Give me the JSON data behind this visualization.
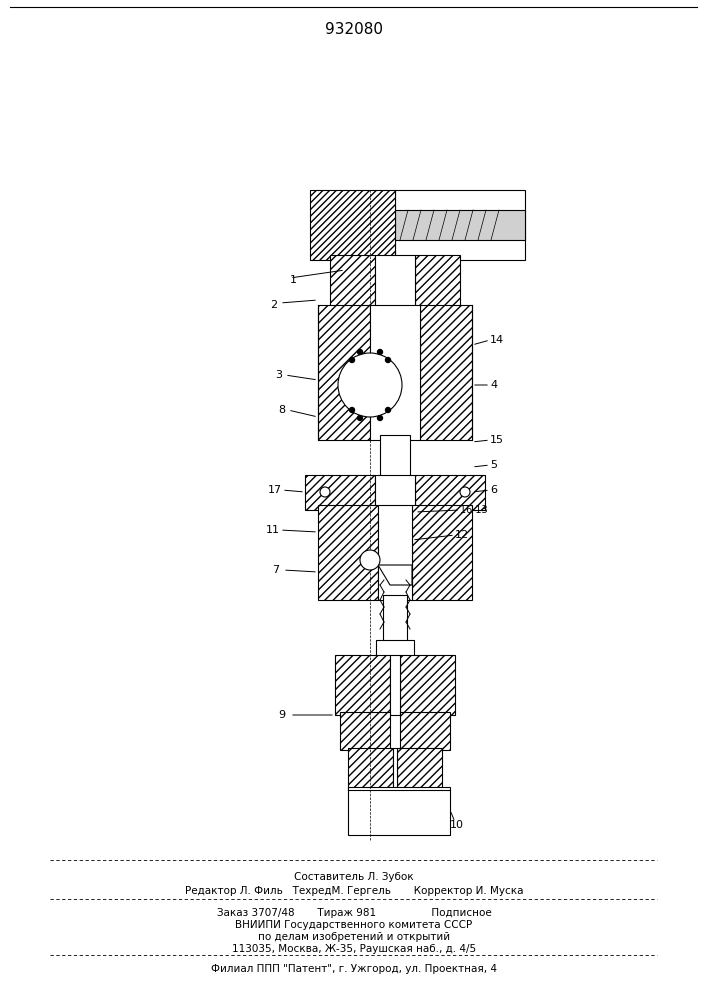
{
  "patent_number": "932080",
  "bg_color": "#ffffff",
  "line_color": "#000000",
  "hatch_color": "#000000",
  "title_fontsize": 11,
  "label_fontsize": 8,
  "footer_lines": [
    "Составитель Л. Зубок",
    "Редактор Л. Филь   ТехредМ. Гергель       Корректор И. Муска",
    "Заказ 3707/48       Тираж 981                 Подписное",
    "ВНИИПИ Государственного комитета СССР",
    "по делам изобретений и открытий",
    "113035, Москва, Ж-35, Раушская наб., д. 4/5",
    "Филиал ППП \"Патент\", г. Ужгород, ул. Проектная, 4"
  ]
}
